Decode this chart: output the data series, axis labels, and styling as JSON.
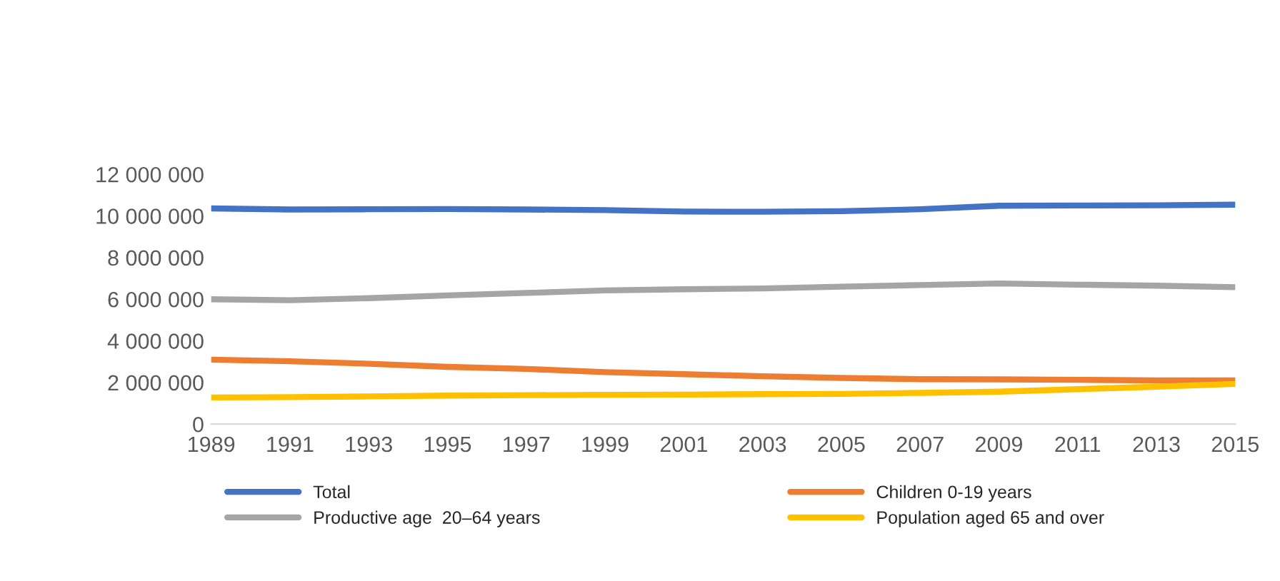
{
  "chart_data": {
    "type": "line",
    "x": [
      1989,
      1991,
      1993,
      1995,
      1997,
      1999,
      2001,
      2003,
      2005,
      2007,
      2009,
      2011,
      2013,
      2015
    ],
    "series": [
      {
        "name": "Total",
        "color": "#4472c4",
        "values": [
          10360000,
          10310000,
          10320000,
          10330000,
          10310000,
          10280000,
          10210000,
          10200000,
          10230000,
          10320000,
          10490000,
          10500000,
          10510000,
          10540000
        ]
      },
      {
        "name": "Children 0-19 years",
        "color": "#ed7d31",
        "values": [
          3100000,
          3020000,
          2900000,
          2750000,
          2650000,
          2500000,
          2400000,
          2300000,
          2220000,
          2160000,
          2150000,
          2130000,
          2100000,
          2100000
        ]
      },
      {
        "name": "Productive age  20–64 years",
        "color": "#a5a5a5",
        "values": [
          6000000,
          5950000,
          6050000,
          6180000,
          6300000,
          6420000,
          6480000,
          6520000,
          6600000,
          6680000,
          6760000,
          6700000,
          6650000,
          6580000
        ]
      },
      {
        "name": "Population aged 65 and over",
        "color": "#ffc000",
        "values": [
          1280000,
          1300000,
          1330000,
          1370000,
          1390000,
          1410000,
          1420000,
          1440000,
          1450000,
          1500000,
          1560000,
          1680000,
          1800000,
          1930000
        ]
      }
    ],
    "xlim": [
      1989,
      2015
    ],
    "xticks": [
      1989,
      1991,
      1993,
      1995,
      1997,
      1999,
      2001,
      2003,
      2005,
      2007,
      2009,
      2011,
      2013,
      2015
    ],
    "ylim": [
      0,
      12000000
    ],
    "yticks": [
      {
        "value": 0,
        "label": "0"
      },
      {
        "value": 2000000,
        "label": "2 000 000"
      },
      {
        "value": 4000000,
        "label": "4 000 000"
      },
      {
        "value": 6000000,
        "label": "6 000 000"
      },
      {
        "value": 8000000,
        "label": "8 000 000"
      },
      {
        "value": 10000000,
        "label": "10 000 000"
      },
      {
        "value": 12000000,
        "label": "12 000 000"
      }
    ],
    "grid": false,
    "legend": "bottom",
    "marker": "none",
    "line_style": "solid"
  }
}
